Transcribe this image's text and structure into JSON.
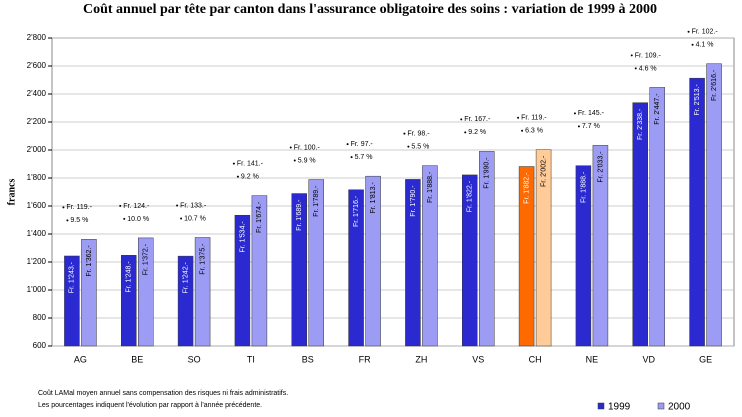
{
  "chart_data": {
    "type": "bar",
    "title": "Coût annuel par tête par canton dans l'assurance obligatoire des soins : variation de 1999 à 2000",
    "y_label": "francs",
    "categories": [
      "AG",
      "BE",
      "SO",
      "TI",
      "BS",
      "FR",
      "ZH",
      "VS",
      "CH",
      "NE",
      "VD",
      "GE"
    ],
    "series": [
      {
        "name": "1999",
        "color": "#2a2ad0",
        "colors": [
          "#2a2ad0",
          "#2a2ad0",
          "#2a2ad0",
          "#2a2ad0",
          "#2a2ad0",
          "#2a2ad0",
          "#2a2ad0",
          "#2a2ad0",
          "#ff6a00",
          "#2a2ad0",
          "#2a2ad0",
          "#2a2ad0"
        ],
        "values": [
          1243,
          1248,
          1242,
          1534,
          1689,
          1716,
          1790,
          1822,
          1882,
          1888,
          2338,
          2513
        ],
        "value_labels": [
          "Fr. 1'243.-",
          "Fr. 1'248.-",
          "Fr. 1'242.-",
          "Fr. 1'534.-",
          "Fr. 1'689.-",
          "Fr. 1'716.-",
          "Fr. 1'790.-",
          "Fr. 1'822.-",
          "Fr. 1'882.-",
          "Fr. 1'888.-",
          "Fr. 2'338.-",
          "Fr. 2'513.-"
        ]
      },
      {
        "name": "2000",
        "color": "#9c9cf4",
        "colors": [
          "#9c9cf4",
          "#9c9cf4",
          "#9c9cf4",
          "#9c9cf4",
          "#9c9cf4",
          "#9c9cf4",
          "#9c9cf4",
          "#9c9cf4",
          "#ffcc99",
          "#9c9cf4",
          "#9c9cf4",
          "#9c9cf4"
        ],
        "values": [
          1362,
          1372,
          1375,
          1674,
          1789,
          1813,
          1888,
          1990,
          2002,
          2033,
          2447,
          2616
        ],
        "value_labels": [
          "Fr. 1'362.-",
          "Fr. 1'372.-",
          "Fr. 1'375.-",
          "Fr. 1'674.-",
          "Fr. 1'789.-",
          "Fr. 1'813.-",
          "Fr. 1'888.-",
          "Fr. 1'990.-",
          "Fr. 2'002.-",
          "Fr. 2'033.-",
          "Fr. 2'447.-",
          "Fr. 2'616.-"
        ]
      }
    ],
    "annotations": [
      {
        "diff": "Fr. 119.-",
        "pct": "9.5 %"
      },
      {
        "diff": "Fr. 124.-",
        "pct": "10.0 %"
      },
      {
        "diff": "Fr. 133.-",
        "pct": "10.7 %"
      },
      {
        "diff": "Fr. 141.-",
        "pct": "9.2 %"
      },
      {
        "diff": "Fr. 100.-",
        "pct": "5.9 %"
      },
      {
        "diff": "Fr. 97.-",
        "pct": "5.7 %"
      },
      {
        "diff": "Fr. 98.-",
        "pct": "5.5 %"
      },
      {
        "diff": "Fr. 167.-",
        "pct": "9.2 %"
      },
      {
        "diff": "Fr. 119.-",
        "pct": "6.3 %"
      },
      {
        "diff": "Fr. 145.-",
        "pct": "7.7 %"
      },
      {
        "diff": "Fr. 109.-",
        "pct": "4.6 %"
      },
      {
        "diff": "Fr. 102.-",
        "pct": "4.1 %"
      }
    ],
    "ylim": [
      600,
      2800
    ],
    "yticks": [
      {
        "value": 600,
        "label": "600"
      },
      {
        "value": 800,
        "label": "800"
      },
      {
        "value": 1000,
        "label": "1'000"
      },
      {
        "value": 1200,
        "label": "1'200"
      },
      {
        "value": 1400,
        "label": "1'400"
      },
      {
        "value": 1600,
        "label": "1'600"
      },
      {
        "value": 1800,
        "label": "1'800"
      },
      {
        "value": 2000,
        "label": "2'000"
      },
      {
        "value": 2200,
        "label": "2'200"
      },
      {
        "value": 2400,
        "label": "2'400"
      },
      {
        "value": 2600,
        "label": "2'600"
      },
      {
        "value": 2800,
        "label": "2'800"
      }
    ],
    "grid": true,
    "legend_position": "bottom-right",
    "notes": [
      "Coût LAMal moyen annuel sans compensation des risques ni frais administratifs.",
      "Les pourcentages indiquent l'évolution par rapport à l'année précédente."
    ]
  }
}
